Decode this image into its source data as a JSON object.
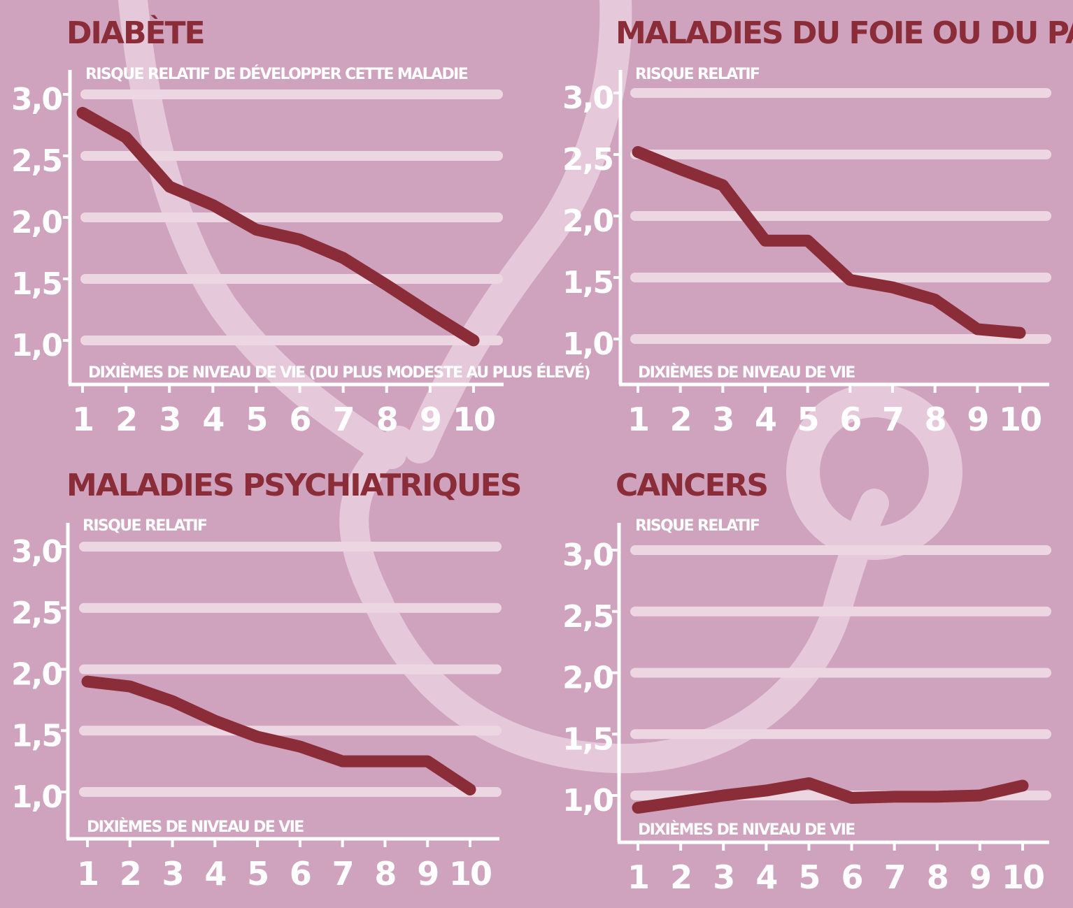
{
  "colors": {
    "background": "#cfa3bd",
    "decoration": "#e5c9da",
    "gridline": "#ecd6e1",
    "axis": "#ffffff",
    "line": "#8b2d39",
    "title": "#8b2d39",
    "text": "#ffffff"
  },
  "decoration_icon": "stethoscope-icon",
  "chart_data": [
    {
      "type": "line",
      "title": "DIABÈTE",
      "ylabel": "RISQUE RELATIF DE DÉVELOPPER CETTE MALADIE",
      "xlabel": "DIXIÈMES DE NIVEAU DE VIE (DU PLUS MODESTE AU PLUS ÉLEVÉ)",
      "x": [
        "1",
        "2",
        "3",
        "4",
        "5",
        "6",
        "7",
        "8",
        "9",
        "10"
      ],
      "y_ticks": [
        "1,0",
        "1,5",
        "2,0",
        "2,5",
        "3,0"
      ],
      "ylim": [
        1.0,
        3.0
      ],
      "grid": true,
      "series": [
        {
          "values": [
            2.85,
            2.65,
            2.25,
            2.1,
            1.9,
            1.82,
            1.67,
            1.45,
            1.22,
            1.0
          ]
        }
      ]
    },
    {
      "type": "line",
      "title": "MALADIES DU FOIE OU DU PANCRÉAS",
      "ylabel": "RISQUE RELATIF",
      "xlabel": "DIXIÈMES DE NIVEAU DE VIE",
      "x": [
        "1",
        "2",
        "3",
        "4",
        "5",
        "6",
        "7",
        "8",
        "9",
        "10"
      ],
      "y_ticks": [
        "1,0",
        "1,5",
        "2,0",
        "2,5",
        "3,0"
      ],
      "ylim": [
        1.0,
        3.0
      ],
      "grid": true,
      "series": [
        {
          "values": [
            2.52,
            2.38,
            2.25,
            1.8,
            1.8,
            1.48,
            1.42,
            1.32,
            1.08,
            1.05
          ]
        }
      ]
    },
    {
      "type": "line",
      "title": "MALADIES PSYCHIATRIQUES",
      "ylabel": "RISQUE RELATIF",
      "xlabel": "DIXIÈMES DE NIVEAU DE VIE",
      "x": [
        "1",
        "2",
        "3",
        "4",
        "5",
        "6",
        "7",
        "8",
        "9",
        "10"
      ],
      "y_ticks": [
        "1,0",
        "1,5",
        "2,0",
        "2,5",
        "3,0"
      ],
      "ylim": [
        1.0,
        3.0
      ],
      "grid": true,
      "series": [
        {
          "values": [
            1.9,
            1.86,
            1.74,
            1.58,
            1.45,
            1.37,
            1.25,
            1.25,
            1.25,
            1.02
          ]
        }
      ]
    },
    {
      "type": "line",
      "title": "CANCERS",
      "ylabel": "RISQUE RELATIF",
      "xlabel": "DIXIÈMES DE NIVEAU DE VIE",
      "x": [
        "1",
        "2",
        "3",
        "4",
        "5",
        "6",
        "7",
        "8",
        "9",
        "10"
      ],
      "y_ticks": [
        "1,0",
        "1,5",
        "2,0",
        "2,5",
        "3,0"
      ],
      "ylim": [
        1.0,
        3.0
      ],
      "grid": true,
      "series": [
        {
          "values": [
            0.9,
            0.95,
            1.0,
            1.04,
            1.1,
            0.98,
            0.99,
            0.99,
            1.0,
            1.08
          ]
        }
      ]
    }
  ]
}
